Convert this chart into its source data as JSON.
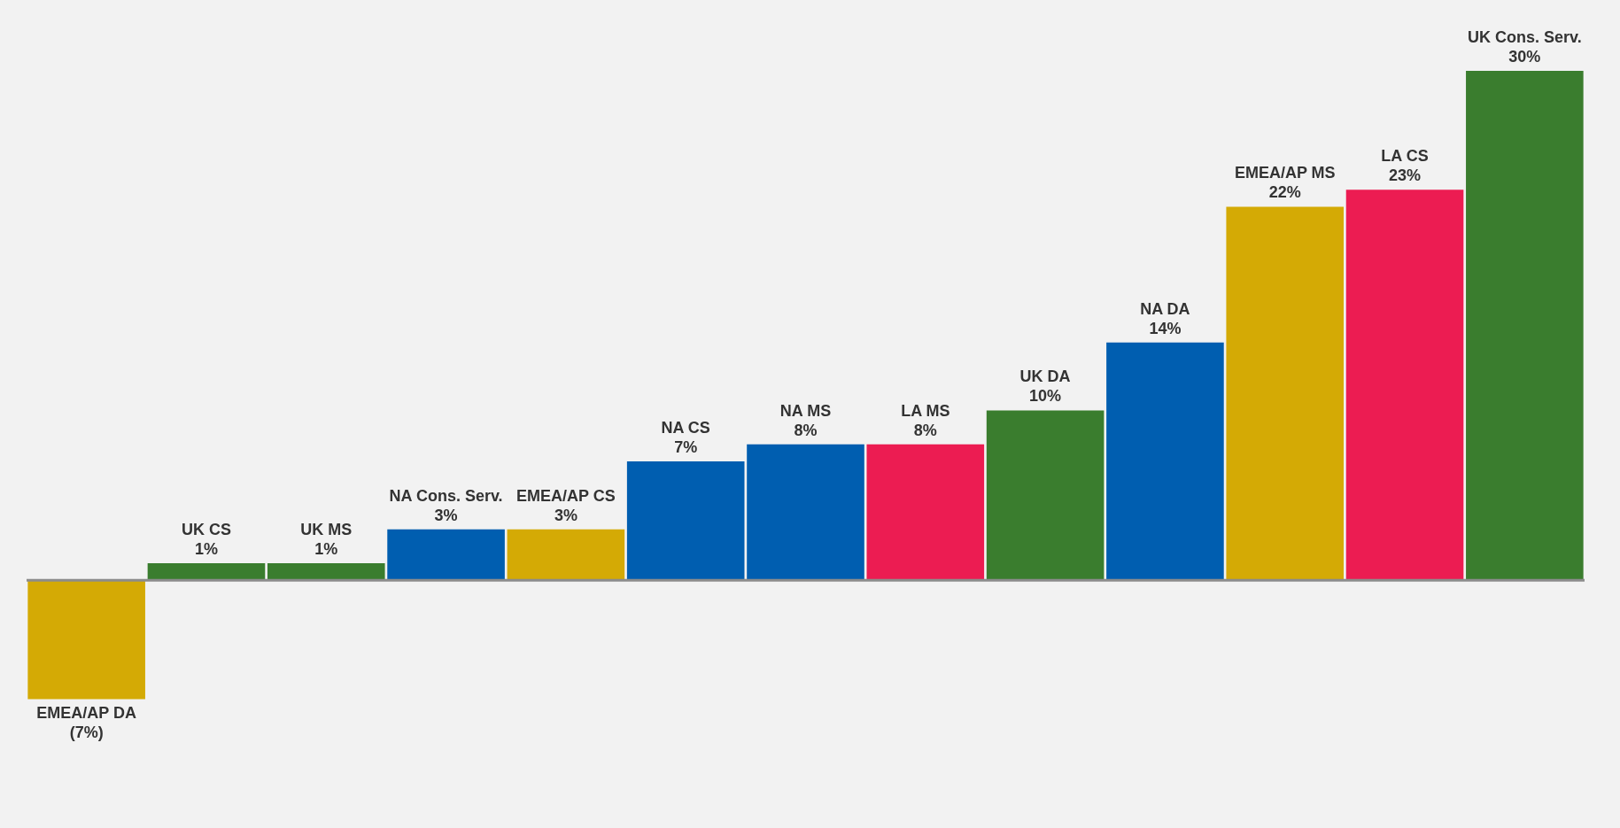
{
  "chart_data": {
    "type": "bar",
    "categories": [
      "EMEA/AP DA",
      "UK CS",
      "UK MS",
      "NA Cons. Serv.",
      "EMEA/AP CS",
      "NA CS",
      "NA MS",
      "LA MS",
      "UK DA",
      "NA DA",
      "EMEA/AP MS",
      "LA CS",
      "UK Cons. Serv."
    ],
    "values": [
      -7,
      1,
      1,
      3,
      3,
      7,
      8,
      8,
      10,
      14,
      22,
      23,
      30
    ],
    "value_labels": [
      "(7%)",
      "1%",
      "1%",
      "3%",
      "3%",
      "7%",
      "8%",
      "8%",
      "10%",
      "14%",
      "22%",
      "23%",
      "30%"
    ],
    "colors": [
      "#d4aa05",
      "#3a7d2e",
      "#3a7d2e",
      "#005eb0",
      "#d4aa05",
      "#005eb0",
      "#005eb0",
      "#ec1c52",
      "#3a7d2e",
      "#005eb0",
      "#d4aa05",
      "#ec1c52",
      "#3a7d2e"
    ],
    "tick_labels": false,
    "grid": false,
    "legend": false
  }
}
